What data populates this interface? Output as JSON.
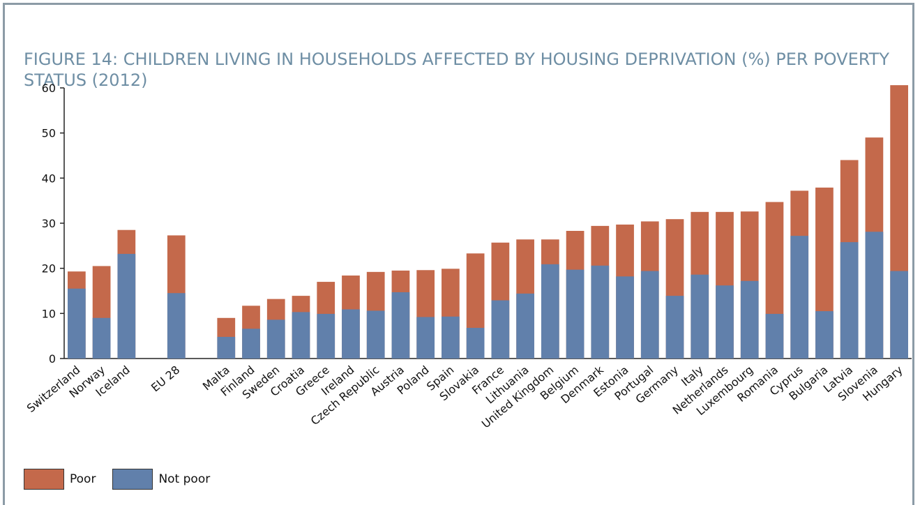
{
  "chart_data": {
    "type": "overlapping_bar",
    "title": "Figure 14: Children living in households affected by housing deprivation (%) per poverty status (2012)",
    "categories": [
      "Switzerland",
      "Norway",
      "Iceland",
      null,
      "EU 28",
      null,
      "Malta",
      "Finland",
      "Sweden",
      "Croatia",
      "Greece",
      "Ireland",
      "Czech Republic",
      "Austria",
      "Poland",
      "Spain",
      "Slovakia",
      "France",
      "Lithuania",
      "United Kingdom",
      "Belgium",
      "Denmark",
      "Estonia",
      "Portugal",
      "Germany",
      "Italy",
      "Netherlands",
      "Luxembourg",
      "Romania",
      "Cyprus",
      "Bulgaria",
      "Latvia",
      "Slovenia",
      "Hungary"
    ],
    "series": [
      {
        "name": "Poor",
        "color": "#c4694b",
        "values": [
          19.3,
          20.5,
          28.5,
          null,
          27.3,
          null,
          9,
          11.7,
          13.2,
          13.9,
          17,
          18.4,
          19.2,
          19.5,
          19.6,
          19.9,
          23.3,
          25.7,
          26.4,
          26.4,
          28.3,
          29.4,
          29.7,
          30.4,
          30.9,
          32.5,
          32.5,
          32.6,
          34.7,
          37.2,
          37.9,
          44,
          49,
          60.6
        ]
      },
      {
        "name": "Not poor",
        "color": "#6180ab",
        "values": [
          15.5,
          9,
          23.2,
          null,
          14.5,
          null,
          4.8,
          6.6,
          8.6,
          10.3,
          9.9,
          10.9,
          10.6,
          14.7,
          9.2,
          9.3,
          6.8,
          12.9,
          14.4,
          20.9,
          19.7,
          20.6,
          18.2,
          19.4,
          13.9,
          18.6,
          16.2,
          17.2,
          9.9,
          27.2,
          10.5,
          25.8,
          28.1,
          19.4
        ]
      }
    ],
    "ylim": [
      0,
      60
    ],
    "yticks": [
      0,
      10,
      20,
      30,
      40,
      50,
      60
    ],
    "legend": "bottom-left"
  }
}
